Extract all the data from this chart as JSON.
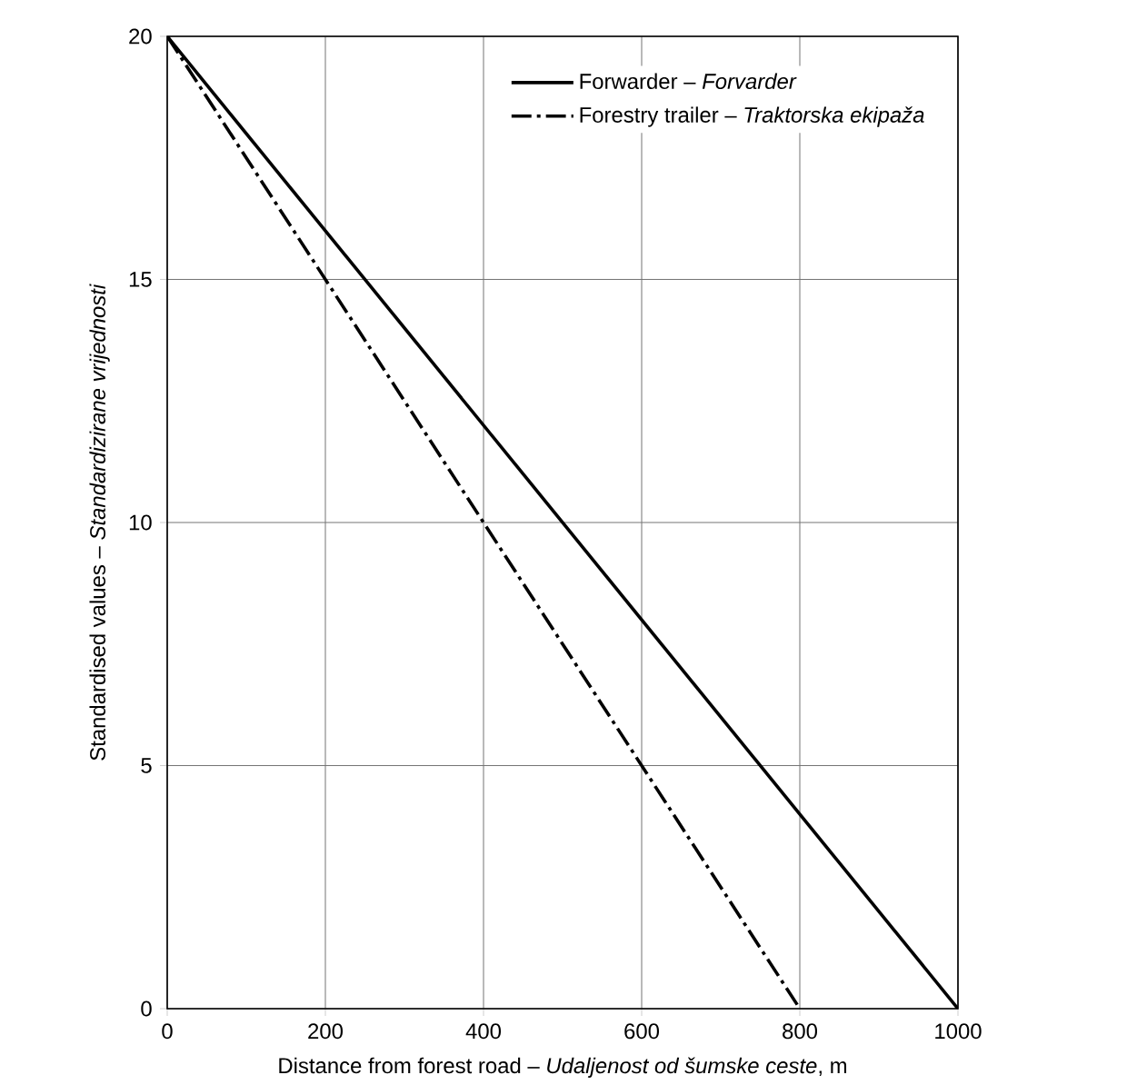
{
  "chart_data": {
    "type": "line",
    "xlabel": "Distance from forest road – *Udaljenost od šumske ceste*, m",
    "ylabel": "Standardised values – *Standardizirane vrijednosti*",
    "xlim": [
      0,
      1000
    ],
    "ylim": [
      0,
      20
    ],
    "xticks": [
      0,
      200,
      400,
      600,
      800,
      1000
    ],
    "yticks": [
      0,
      5,
      10,
      15,
      20
    ],
    "grid": true,
    "legend": "top right",
    "marker": "none",
    "series": [
      {
        "name": "Forwarder – *Forvarder*",
        "color": "#000000",
        "line_style": "solid",
        "x": [
          0,
          1000
        ],
        "values": [
          20,
          0
        ]
      },
      {
        "name": "Forestry trailer – *Traktorska ekipaža*",
        "color": "#000000",
        "line_style": "dashdot",
        "x": [
          0,
          800
        ],
        "values": [
          20,
          0
        ]
      }
    ]
  }
}
